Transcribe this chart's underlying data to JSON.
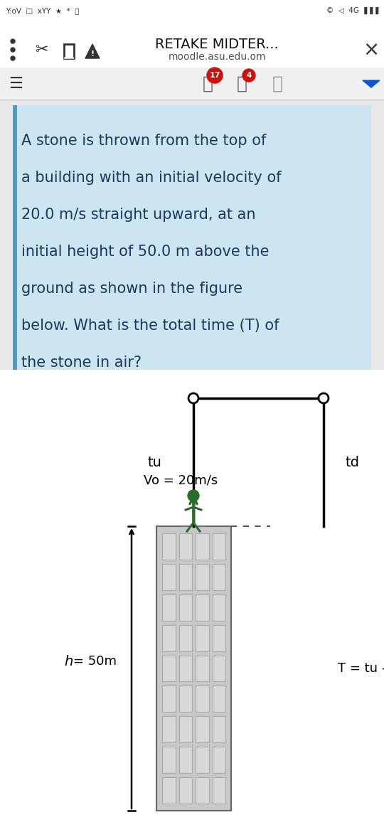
{
  "bg_color": "#e8e8e8",
  "status_bar_bg": "#ffffff",
  "nav_bar_bg": "#ffffff",
  "toolbar_bg": "#f0f0f0",
  "question_bg": "#cce5f0",
  "diagram_bg": "#ffffff",
  "title": "RETAKE MIDTER...",
  "subtitle": "moodle.asu.edu.om",
  "question_text_line1": "A stone is thrown from the top of",
  "question_text_line2": "a building with an initial velocity of",
  "question_text_line3": "20.0 m/s straight upward, at an",
  "question_text_line4": "initial height of 50.0 m above the",
  "question_text_line5": "ground as shown in the figure",
  "question_text_line6": "below. What is the total time (T) of",
  "question_text_line7": "the stone in air?",
  "label_tu": "tu",
  "label_td": "td",
  "label_vo": "Vo = 20m/s",
  "label_h": "h",
  "label_h2": "50m",
  "label_T": "T = tu -",
  "building_color": "#c8c8c8",
  "window_color": "#d8d8d8",
  "window_border": "#aaaaaa",
  "line_color": "#000000",
  "arrow_green": "#2d6a2d",
  "text_dark": "#1a3a5c",
  "text_black": "#000000",
  "nav_icon_color": "#333333",
  "dashed_line_color": "#555555"
}
